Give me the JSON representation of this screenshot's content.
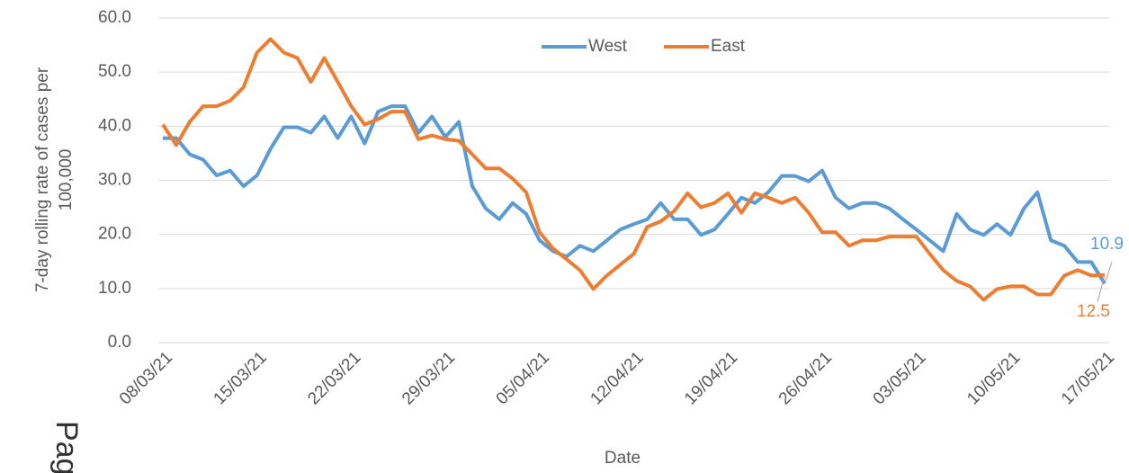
{
  "chart_data": {
    "type": "line",
    "xlabel": "Date",
    "ylabel": [
      "7-day rolling rate of cases per",
      "100,000"
    ],
    "annotation": "Pag",
    "categories": [
      "08/03/21",
      null,
      null,
      null,
      null,
      null,
      null,
      "15/03/21",
      null,
      null,
      null,
      null,
      null,
      null,
      "22/03/21",
      null,
      null,
      null,
      null,
      null,
      null,
      "29/03/21",
      null,
      null,
      null,
      null,
      null,
      null,
      "05/04/21",
      null,
      null,
      null,
      null,
      null,
      null,
      "12/04/21",
      null,
      null,
      null,
      null,
      null,
      null,
      "19/04/21",
      null,
      null,
      null,
      null,
      null,
      null,
      "26/04/21",
      null,
      null,
      null,
      null,
      null,
      null,
      "03/05/21",
      null,
      null,
      null,
      null,
      null,
      null,
      "10/05/21",
      null,
      null,
      null,
      null,
      null,
      null,
      "17/05/21"
    ],
    "series": [
      {
        "name": "West",
        "color": "#5b9bd5",
        "values": [
          37.8,
          37.8,
          34.8,
          33.8,
          30.9,
          31.8,
          28.9,
          30.9,
          35.8,
          39.8,
          39.8,
          38.8,
          41.8,
          37.8,
          41.8,
          36.8,
          42.7,
          43.7,
          43.7,
          38.8,
          41.8,
          38.0,
          40.8,
          28.9,
          24.8,
          22.8,
          25.8,
          23.8,
          18.9,
          16.9,
          15.9,
          17.9,
          16.9,
          18.9,
          20.9,
          21.9,
          22.8,
          25.8,
          22.8,
          22.8,
          19.9,
          20.9,
          23.8,
          26.8,
          25.8,
          27.8,
          30.8,
          30.8,
          29.8,
          31.8,
          26.8,
          24.8,
          25.8,
          25.8,
          24.8,
          22.8,
          20.9,
          18.9,
          16.9,
          23.8,
          20.9,
          19.9,
          21.9,
          19.9,
          24.8,
          27.8,
          18.9,
          17.9,
          14.9,
          14.9,
          10.9
        ]
      },
      {
        "name": "East",
        "color": "#ed7d31",
        "values": [
          40.3,
          36.5,
          40.8,
          43.7,
          43.7,
          44.7,
          47.2,
          53.6,
          56.1,
          53.6,
          52.6,
          48.2,
          52.6,
          48.2,
          43.7,
          40.3,
          41.3,
          42.7,
          42.7,
          37.6,
          38.3,
          37.6,
          37.3,
          34.8,
          32.2,
          32.2,
          30.3,
          27.8,
          20.4,
          17.4,
          15.4,
          13.4,
          9.9,
          12.4,
          14.4,
          16.4,
          21.4,
          22.4,
          24.3,
          27.6,
          25.0,
          25.8,
          27.6,
          24.0,
          27.6,
          26.8,
          25.8,
          26.8,
          24.0,
          20.4,
          20.4,
          17.9,
          18.9,
          18.9,
          19.6,
          19.6,
          19.6,
          16.4,
          13.4,
          11.4,
          10.4,
          7.9,
          9.9,
          10.4,
          10.4,
          8.9,
          8.9,
          12.4,
          13.4,
          12.4,
          12.5
        ]
      }
    ],
    "ylim": [
      0,
      60
    ],
    "yticks": [
      {
        "value": 0,
        "label": "0.0"
      },
      {
        "value": 10,
        "label": "10.0"
      },
      {
        "value": 20,
        "label": "20.0"
      },
      {
        "value": 30,
        "label": "30.0"
      },
      {
        "value": 40,
        "label": "40.0"
      },
      {
        "value": 50,
        "label": "50.0"
      },
      {
        "value": 60,
        "label": "60.0"
      }
    ],
    "grid": true,
    "legend": "top"
  }
}
